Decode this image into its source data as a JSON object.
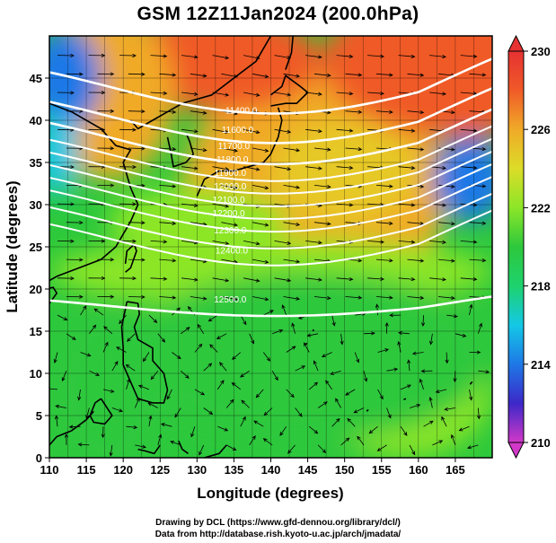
{
  "title": "GSM 12Z11Jan2024 (200.0hPa)",
  "credits": {
    "line1": "Drawing by DCL (https://www.gfd-dennou.org/library/dcl/)",
    "line2": "Data from http://database.rish.kyoto-u.ac.jp/arch/jmadata/"
  },
  "map": {
    "x_axis": {
      "label": "Longitude (degrees)",
      "range": [
        110,
        170
      ],
      "ticks": [
        "110",
        "115",
        "120",
        "125",
        "130",
        "135",
        "140",
        "145",
        "150",
        "155",
        "160",
        "165"
      ]
    },
    "y_axis": {
      "label": "Latitude  (degrees)",
      "range": [
        0,
        50
      ],
      "ticks": [
        "0",
        "5",
        "10",
        "15",
        "20",
        "25",
        "30",
        "35",
        "40",
        "45"
      ]
    },
    "colorbar": {
      "range": [
        210,
        230
      ],
      "labels": [
        "230",
        "226",
        "222",
        "218",
        "214",
        "210"
      ],
      "colors": [
        "#d238c8",
        "#3c28c8",
        "#1e78e6",
        "#14c8e6",
        "#1ed26e",
        "#2dc83c",
        "#8ce628",
        "#dcdc28",
        "#f0aa28",
        "#f05a28",
        "#e63232"
      ]
    },
    "contour_labels": [
      "11400.0",
      "11600.0",
      "11700.0",
      "11800.0",
      "11900.0",
      "12000.0",
      "12100.0",
      "12200.0",
      "12300.0",
      "12400.0",
      "12500.0"
    ],
    "contour_color": "#ffffff",
    "coast_color": "#000000",
    "arrow_color": "#000000"
  }
}
